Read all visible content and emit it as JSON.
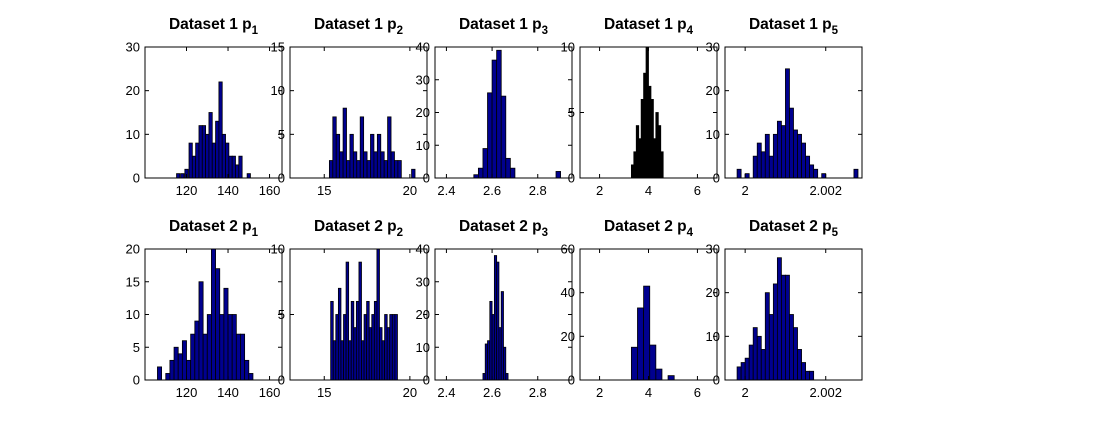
{
  "figure": {
    "background": "#ffffff",
    "bar_color": "#00008f",
    "bar_edge": "#000000"
  },
  "chart_data": [
    {
      "type": "bar",
      "title": "Dataset 1 p",
      "title_sub": "1",
      "xlim": [
        100,
        166
      ],
      "ylim": [
        0,
        30
      ],
      "xticks": [
        120,
        140,
        160
      ],
      "xtick_labels": [
        "120",
        "140",
        "160"
      ],
      "yticks": [
        0,
        10,
        20,
        30
      ],
      "ytick_labels": [
        "0",
        "10",
        "20",
        "30"
      ],
      "bin_width": 1.6,
      "bins": [
        [
          116,
          1
        ],
        [
          118,
          1
        ],
        [
          120,
          2
        ],
        [
          122,
          8
        ],
        [
          123.6,
          5
        ],
        [
          125.2,
          8
        ],
        [
          126.8,
          12
        ],
        [
          128.4,
          12
        ],
        [
          130,
          10
        ],
        [
          131.6,
          15
        ],
        [
          133.2,
          8
        ],
        [
          134.8,
          13
        ],
        [
          136.4,
          22
        ],
        [
          138,
          10
        ],
        [
          139.6,
          8
        ],
        [
          141.2,
          5
        ],
        [
          142.8,
          5
        ],
        [
          144.4,
          3
        ],
        [
          146,
          5
        ],
        [
          150,
          1
        ]
      ]
    },
    {
      "type": "bar",
      "title": "Dataset 1 p",
      "title_sub": "2",
      "xlim": [
        13,
        21
      ],
      "ylim": [
        0,
        15
      ],
      "xticks": [
        15,
        20
      ],
      "xtick_labels": [
        "15",
        "20"
      ],
      "yticks": [
        0,
        5,
        10,
        15
      ],
      "ytick_labels": [
        "0",
        "5",
        "10",
        "15"
      ],
      "bin_width": 0.2,
      "bins": [
        [
          15.4,
          2
        ],
        [
          15.6,
          7
        ],
        [
          15.8,
          5
        ],
        [
          16.0,
          3
        ],
        [
          16.2,
          8
        ],
        [
          16.4,
          2
        ],
        [
          16.6,
          5
        ],
        [
          16.8,
          3
        ],
        [
          17.0,
          2
        ],
        [
          17.2,
          7
        ],
        [
          17.4,
          3
        ],
        [
          17.6,
          2
        ],
        [
          17.8,
          5
        ],
        [
          18.0,
          3
        ],
        [
          18.2,
          5
        ],
        [
          18.4,
          3
        ],
        [
          18.6,
          2
        ],
        [
          18.8,
          7
        ],
        [
          19.0,
          3
        ],
        [
          19.2,
          2
        ],
        [
          19.4,
          2
        ],
        [
          20.2,
          1
        ]
      ]
    },
    {
      "type": "bar",
      "title": "Dataset 1 p",
      "title_sub": "3",
      "xlim": [
        2.35,
        2.95
      ],
      "ylim": [
        0,
        40
      ],
      "xticks": [
        2.4,
        2.6,
        2.8
      ],
      "xtick_labels": [
        "2.4",
        "2.6",
        "2.8"
      ],
      "yticks": [
        0,
        10,
        20,
        30,
        40
      ],
      "ytick_labels": [
        "0",
        "10",
        "20",
        "30",
        "40"
      ],
      "bin_width": 0.02,
      "bins": [
        [
          2.53,
          1
        ],
        [
          2.55,
          3
        ],
        [
          2.57,
          9
        ],
        [
          2.59,
          26
        ],
        [
          2.61,
          36
        ],
        [
          2.63,
          39
        ],
        [
          2.65,
          25
        ],
        [
          2.67,
          6
        ],
        [
          2.69,
          3
        ],
        [
          2.89,
          2
        ]
      ]
    },
    {
      "type": "bar",
      "title": "Dataset 1 p",
      "title_sub": "4",
      "xlim": [
        1.2,
        6.8
      ],
      "ylim": [
        0,
        10
      ],
      "xticks": [
        2,
        4,
        6
      ],
      "xtick_labels": [
        "2",
        "4",
        "6"
      ],
      "yticks": [
        0,
        5,
        10
      ],
      "ytick_labels": [
        "0",
        "5",
        "10"
      ],
      "bin_width": 0.1,
      "bar_color": "#000000",
      "bins": [
        [
          3.35,
          1
        ],
        [
          3.45,
          2
        ],
        [
          3.55,
          4
        ],
        [
          3.65,
          3
        ],
        [
          3.75,
          6
        ],
        [
          3.85,
          8
        ],
        [
          3.95,
          10
        ],
        [
          4.05,
          7
        ],
        [
          4.15,
          6
        ],
        [
          4.25,
          3
        ],
        [
          4.35,
          5
        ],
        [
          4.45,
          4
        ],
        [
          4.55,
          2
        ]
      ]
    },
    {
      "type": "bar",
      "title": "Dataset 1 p",
      "title_sub": "5",
      "xlim": [
        1.9995,
        2.0029
      ],
      "ylim": [
        0,
        30
      ],
      "xticks": [
        2,
        2.002
      ],
      "xtick_labels": [
        "2",
        "2.002"
      ],
      "yticks": [
        0,
        10,
        20,
        30
      ],
      "ytick_labels": [
        "0",
        "10",
        "20",
        "30"
      ],
      "bin_width": 0.0001,
      "bins": [
        [
          1.99985,
          2
        ],
        [
          2.00005,
          1
        ],
        [
          2.00025,
          5
        ],
        [
          2.00035,
          8
        ],
        [
          2.00045,
          6
        ],
        [
          2.00055,
          10
        ],
        [
          2.00065,
          5
        ],
        [
          2.00075,
          10
        ],
        [
          2.00085,
          13
        ],
        [
          2.00095,
          12
        ],
        [
          2.00105,
          25
        ],
        [
          2.00115,
          16
        ],
        [
          2.00125,
          11
        ],
        [
          2.00135,
          10
        ],
        [
          2.00145,
          8
        ],
        [
          2.00155,
          5
        ],
        [
          2.00165,
          3
        ],
        [
          2.00175,
          2
        ],
        [
          2.00195,
          1
        ],
        [
          2.00275,
          2
        ]
      ]
    },
    {
      "type": "bar",
      "title": "Dataset 2 p",
      "title_sub": "1",
      "xlim": [
        100,
        166
      ],
      "ylim": [
        0,
        20
      ],
      "xticks": [
        120,
        140,
        160
      ],
      "xtick_labels": [
        "120",
        "140",
        "160"
      ],
      "yticks": [
        0,
        5,
        10,
        15,
        20
      ],
      "ytick_labels": [
        "0",
        "5",
        "10",
        "15",
        "20"
      ],
      "bin_width": 2,
      "bins": [
        [
          107,
          2
        ],
        [
          111,
          1
        ],
        [
          113,
          3
        ],
        [
          115,
          5
        ],
        [
          117,
          4
        ],
        [
          119,
          6
        ],
        [
          121,
          3
        ],
        [
          123,
          7
        ],
        [
          125,
          9
        ],
        [
          127,
          15
        ],
        [
          129,
          7
        ],
        [
          131,
          10
        ],
        [
          133,
          20
        ],
        [
          135,
          17
        ],
        [
          137,
          10
        ],
        [
          139,
          14
        ],
        [
          141,
          10
        ],
        [
          143,
          10
        ],
        [
          145,
          7
        ],
        [
          147,
          7
        ],
        [
          149,
          3
        ],
        [
          151,
          1
        ]
      ]
    },
    {
      "type": "bar",
      "title": "Dataset 2 p",
      "title_sub": "2",
      "xlim": [
        13,
        21
      ],
      "ylim": [
        0,
        10
      ],
      "xticks": [
        15,
        20
      ],
      "xtick_labels": [
        "15",
        "20"
      ],
      "yticks": [
        0,
        5,
        10
      ],
      "ytick_labels": [
        "0",
        "5",
        "10"
      ],
      "bin_width": 0.15,
      "bins": [
        [
          15.45,
          6
        ],
        [
          15.6,
          3
        ],
        [
          15.75,
          5
        ],
        [
          15.9,
          7
        ],
        [
          16.05,
          3
        ],
        [
          16.2,
          5
        ],
        [
          16.35,
          9
        ],
        [
          16.5,
          3
        ],
        [
          16.65,
          6
        ],
        [
          16.8,
          4
        ],
        [
          16.95,
          6
        ],
        [
          17.1,
          9
        ],
        [
          17.25,
          3
        ],
        [
          17.4,
          5
        ],
        [
          17.55,
          6
        ],
        [
          17.7,
          4
        ],
        [
          17.85,
          5
        ],
        [
          18.0,
          6
        ],
        [
          18.15,
          10
        ],
        [
          18.3,
          4
        ],
        [
          18.45,
          3
        ],
        [
          18.6,
          5
        ],
        [
          18.75,
          4
        ],
        [
          18.9,
          5
        ],
        [
          19.05,
          5
        ],
        [
          19.2,
          5
        ]
      ]
    },
    {
      "type": "bar",
      "title": "Dataset 2 p",
      "title_sub": "3",
      "xlim": [
        2.35,
        2.95
      ],
      "ylim": [
        0,
        40
      ],
      "xticks": [
        2.4,
        2.6,
        2.8
      ],
      "xtick_labels": [
        "2.4",
        "2.6",
        "2.8"
      ],
      "yticks": [
        0,
        10,
        20,
        30,
        40
      ],
      "ytick_labels": [
        "0",
        "10",
        "20",
        "30",
        "40"
      ],
      "bin_width": 0.01,
      "bins": [
        [
          2.565,
          2
        ],
        [
          2.575,
          11
        ],
        [
          2.585,
          12
        ],
        [
          2.595,
          24
        ],
        [
          2.605,
          20
        ],
        [
          2.615,
          38
        ],
        [
          2.625,
          36
        ],
        [
          2.635,
          16
        ],
        [
          2.645,
          27
        ],
        [
          2.655,
          10
        ],
        [
          2.665,
          2
        ]
      ]
    },
    {
      "type": "bar",
      "title": "Dataset 2 p",
      "title_sub": "4",
      "xlim": [
        1.2,
        6.8
      ],
      "ylim": [
        0,
        60
      ],
      "xticks": [
        2,
        4,
        6
      ],
      "xtick_labels": [
        "2",
        "4",
        "6"
      ],
      "yticks": [
        0,
        20,
        40,
        60
      ],
      "ytick_labels": [
        "0",
        "20",
        "40",
        "60"
      ],
      "bin_width": 0.25,
      "bins": [
        [
          3.425,
          15
        ],
        [
          3.675,
          33
        ],
        [
          3.925,
          43
        ],
        [
          4.175,
          16
        ],
        [
          4.425,
          5
        ],
        [
          4.925,
          2
        ]
      ]
    },
    {
      "type": "bar",
      "title": "Dataset 2 p",
      "title_sub": "5",
      "xlim": [
        1.9995,
        2.0029
      ],
      "ylim": [
        0,
        30
      ],
      "xticks": [
        2,
        2.002
      ],
      "xtick_labels": [
        "2",
        "2.002"
      ],
      "yticks": [
        0,
        10,
        20,
        30
      ],
      "ytick_labels": [
        "0",
        "10",
        "20",
        "30"
      ],
      "bin_width": 0.0001,
      "bins": [
        [
          1.99985,
          3
        ],
        [
          1.99995,
          4
        ],
        [
          2.00005,
          5
        ],
        [
          2.00015,
          8
        ],
        [
          2.00025,
          12
        ],
        [
          2.00035,
          10
        ],
        [
          2.00045,
          7
        ],
        [
          2.00055,
          20
        ],
        [
          2.00065,
          15
        ],
        [
          2.00075,
          22
        ],
        [
          2.00085,
          28
        ],
        [
          2.00095,
          24
        ],
        [
          2.00105,
          24
        ],
        [
          2.00115,
          15
        ],
        [
          2.00125,
          12
        ],
        [
          2.00135,
          7
        ],
        [
          2.00145,
          4
        ],
        [
          2.00155,
          2
        ],
        [
          2.00165,
          2
        ]
      ]
    }
  ]
}
